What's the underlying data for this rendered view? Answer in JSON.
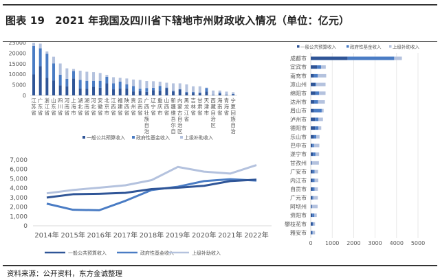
{
  "title": "图表 19　2021 年我国及四川省下辖地市州财政收入情况（单位：亿元）",
  "source": "资料来源：公开资料，东方金诚整理",
  "colors": {
    "general": "#2f5597",
    "fund": "#4a7cc4",
    "transfer": "#b4c2de"
  },
  "chart_data": [
    {
      "type": "bar",
      "stacked": true,
      "orientation": "vertical",
      "categories": [
        "江苏省",
        "广东省",
        "浙江省",
        "山东省",
        "四川省",
        "河南省",
        "上海市",
        "湖北省",
        "湖南省",
        "河北省",
        "安徽省",
        "北京市",
        "江西省",
        "福建省",
        "陕西省",
        "贵州省",
        "云南省",
        "广西壮族自治区",
        "辽宁省",
        "重庆市",
        "山西省",
        "新疆维吾尔自治区",
        "内蒙古自治区",
        "黑龙江省",
        "吉林省",
        "甘肃省",
        "天津市",
        "西藏自治区",
        "海南省",
        "青海省",
        "宁夏回族自治区"
      ],
      "series": [
        {
          "name": "一般公共预算收入",
          "values": [
            9900,
            13900,
            8300,
            7100,
            4800,
            4300,
            8000,
            3300,
            3100,
            4100,
            3600,
            5700,
            2900,
            3300,
            3300,
            1900,
            2000,
            1700,
            2500,
            2100,
            3400,
            1900,
            2800,
            1300,
            1200,
            1000,
            1800,
            200,
            900,
            300,
            500
          ]
        },
        {
          "name": "政府性基金收入",
          "values": [
            13500,
            8400,
            11400,
            8000,
            5000,
            3500,
            3500,
            4000,
            3800,
            2800,
            3300,
            3100,
            2800,
            3200,
            1900,
            2500,
            1100,
            1800,
            1100,
            2400,
            300,
            300,
            200,
            300,
            500,
            400,
            1700,
            100,
            500,
            100,
            200
          ]
        },
        {
          "name": "上级补助收入",
          "values": [
            1400,
            2200,
            1100,
            3200,
            5300,
            5000,
            1000,
            4400,
            4300,
            4100,
            3700,
            900,
            2900,
            1800,
            2800,
            3100,
            4200,
            3300,
            3100,
            2000,
            2300,
            3500,
            2700,
            3600,
            2600,
            2900,
            200,
            2000,
            900,
            1400,
            800
          ]
        }
      ],
      "ylim": [
        0,
        25000
      ],
      "yticks": [
        0,
        5000,
        10000,
        15000,
        20000,
        25000
      ],
      "legend": "bottom",
      "grid": false
    },
    {
      "type": "line",
      "categories": [
        "2014年",
        "2015年",
        "2016年",
        "2017年",
        "2018年",
        "2019年",
        "2020年",
        "2021年",
        "2022年"
      ],
      "series": [
        {
          "name": "一般公共预算收入",
          "values": [
            3000,
            3350,
            3400,
            3500,
            3900,
            4050,
            4250,
            4750,
            4900
          ]
        },
        {
          "name": "政府性基金收入",
          "values": [
            2350,
            1700,
            1650,
            2650,
            3800,
            4150,
            4750,
            4950,
            4800
          ]
        },
        {
          "name": "上级补助收入",
          "values": [
            3450,
            3800,
            4050,
            4300,
            4850,
            6250,
            5750,
            5550,
            6450
          ]
        }
      ],
      "ylim": [
        0,
        7000
      ],
      "yticks": [
        "0",
        "1,000",
        "2,000",
        "3,000",
        "4,000",
        "5,000",
        "6,000",
        "7,000"
      ],
      "legend": "bottom",
      "grid": false
    },
    {
      "type": "bar",
      "stacked": true,
      "orientation": "horizontal",
      "categories": [
        "成都市",
        "宜宾市",
        "南充市",
        "凉山州",
        "绵阳市",
        "达州市",
        "眉山市",
        "泸州市",
        "德阳市",
        "乐山市",
        "巴中市",
        "遂宁市",
        "甘孜州",
        "广安市",
        "内江市",
        "自贡市",
        "广元市",
        "阿坝州",
        "资阳市",
        "攀枝花市",
        "雅安市"
      ],
      "series": [
        {
          "name": "一般公共预算收入",
          "values": [
            1720,
            290,
            150,
            200,
            220,
            160,
            150,
            200,
            200,
            150,
            70,
            100,
            40,
            90,
            90,
            80,
            70,
            40,
            70,
            80,
            50
          ]
        },
        {
          "name": "政府性基金收入",
          "values": [
            2170,
            190,
            180,
            60,
            170,
            180,
            360,
            160,
            160,
            110,
            80,
            120,
            10,
            90,
            90,
            100,
            50,
            20,
            100,
            40,
            40
          ]
        },
        {
          "name": "上级补助收入",
          "values": [
            360,
            220,
            390,
            430,
            300,
            320,
            90,
            210,
            130,
            150,
            250,
            170,
            330,
            160,
            170,
            150,
            210,
            260,
            110,
            80,
            110
          ]
        }
      ],
      "xlim": [
        0,
        5000
      ],
      "xticks": [
        0,
        1000,
        2000,
        3000,
        4000,
        5000
      ],
      "legend": "top",
      "grid": true
    }
  ]
}
